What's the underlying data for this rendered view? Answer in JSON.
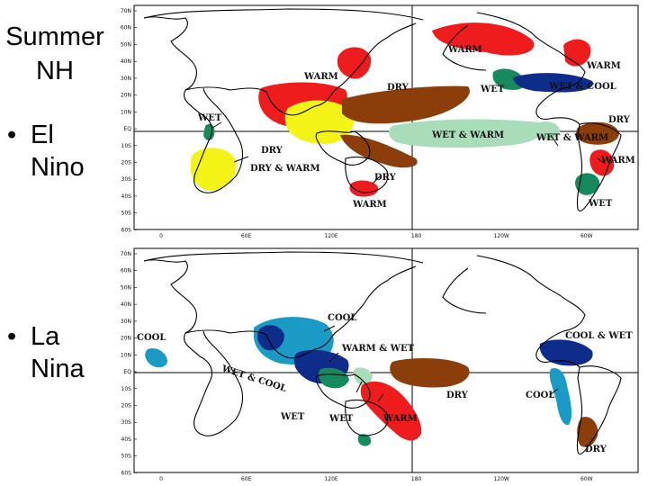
{
  "slide": {
    "title_line1": "Summer",
    "title_line2": "NH",
    "bullets": [
      {
        "symbol": "•",
        "line1": "El",
        "line2": "Nino"
      },
      {
        "symbol": "•",
        "line1": "La",
        "line2": "Nina"
      }
    ]
  },
  "colors": {
    "warm": "#ee1c1c",
    "dry": "#8b3e0a",
    "wet": "#168a5c",
    "wet_light": "#a9ddb9",
    "dry_warm": "#f3f318",
    "cool": "#1a9bc6",
    "cool_wet": "#0e2d8a"
  },
  "axes": {
    "lat_labels": [
      "70N",
      "60N",
      "50N",
      "40N",
      "30N",
      "20N",
      "10N",
      "EQ",
      "10S",
      "20S",
      "30S",
      "40S",
      "50S",
      "60S"
    ],
    "lon_labels": [
      "0",
      "60E",
      "120E",
      "180",
      "120W",
      "60W"
    ]
  },
  "maps": {
    "el_nino": {
      "labels": [
        "WARM",
        "WARM",
        "DRY",
        "WARM",
        "WET",
        "WET & COOL",
        "WET",
        "DRY",
        "DRY & WARM",
        "WET & WARM",
        "WET & WARM",
        "DRY",
        "WARM",
        "DRY",
        "WARM",
        "WET"
      ]
    },
    "la_nina": {
      "labels": [
        "COOL",
        "COOL",
        "WARM & WET",
        "WET & COOL",
        "DRY",
        "COOL & WET",
        "COOL",
        "WET",
        "WET",
        "WARM",
        "DRY"
      ]
    }
  }
}
